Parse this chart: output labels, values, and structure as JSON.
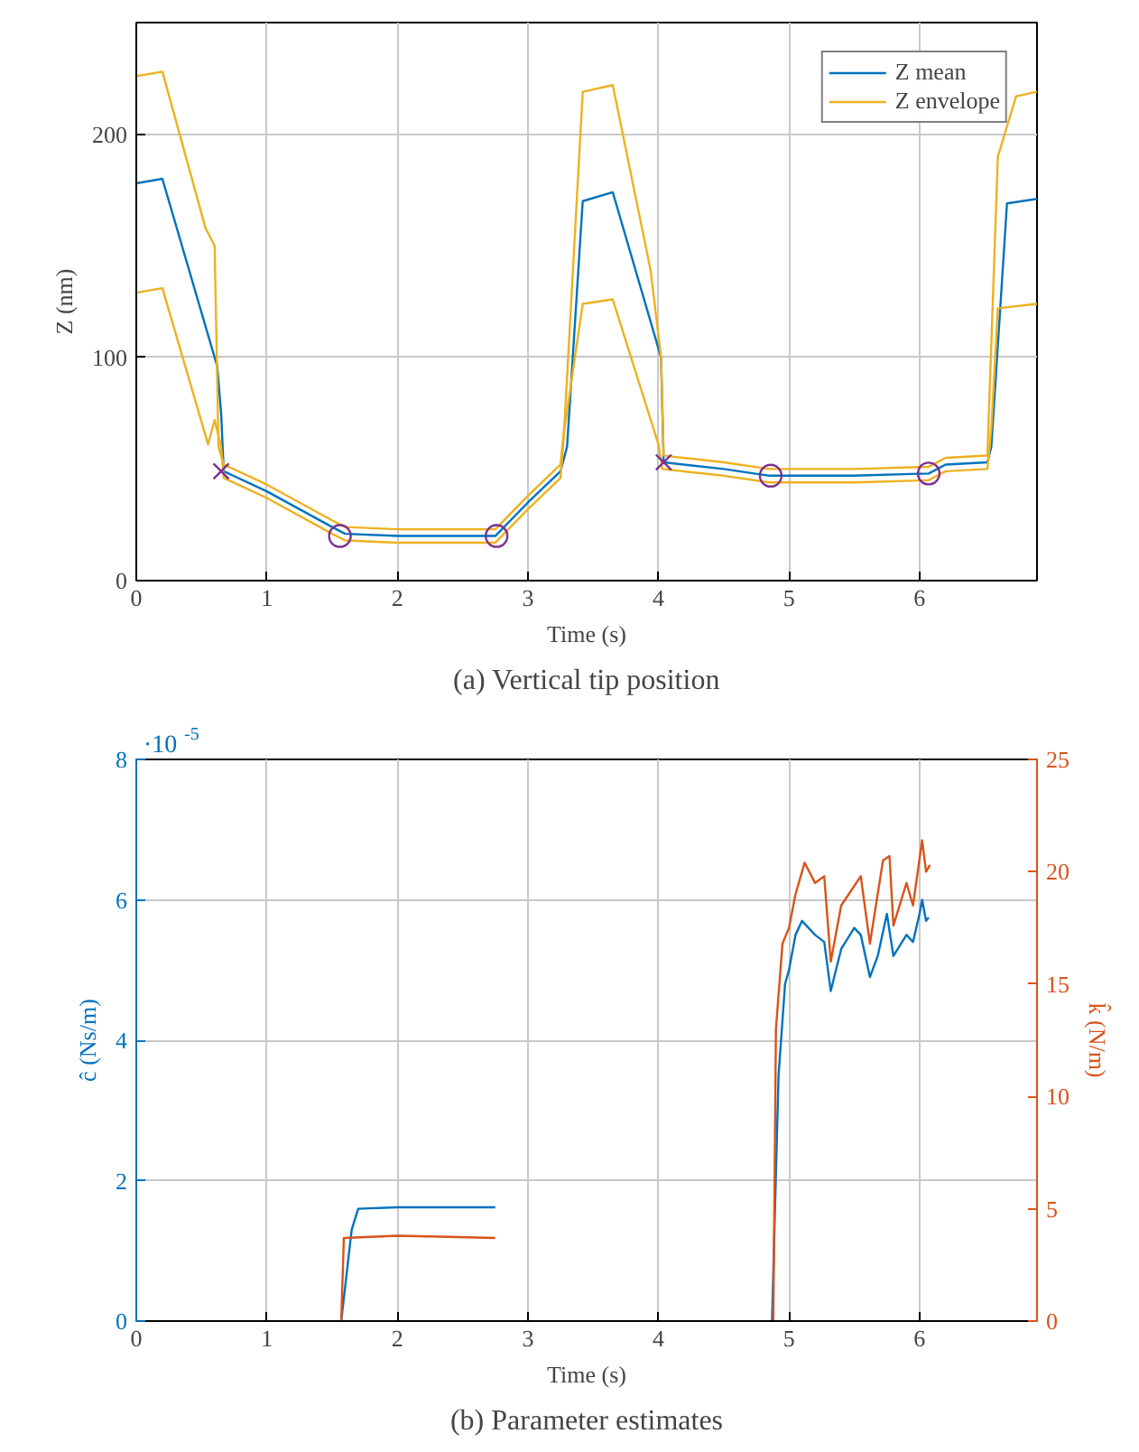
{
  "chart_data": [
    {
      "type": "line",
      "title": "(a) Vertical tip position",
      "xlabel": "Time (s)",
      "ylabel": "Z (nm)",
      "xlim": [
        0,
        6.9
      ],
      "ylim": [
        0,
        250
      ],
      "xticks": [
        0,
        1,
        2,
        3,
        4,
        5,
        6
      ],
      "yticks": [
        0,
        100,
        200
      ],
      "grid": true,
      "legend": "top right",
      "series": [
        {
          "name": "Z mean",
          "color": "#0072bd",
          "x": [
            0,
            0.2,
            0.62,
            0.65,
            0.67,
            1.0,
            1.5,
            1.6,
            2.0,
            2.75,
            3.0,
            3.25,
            3.3,
            3.42,
            3.65,
            4.02,
            4.04,
            4.5,
            4.85,
            5.0,
            5.5,
            6.07,
            6.2,
            6.52,
            6.55,
            6.67,
            6.9
          ],
          "values": [
            178,
            180,
            96,
            75,
            49,
            40,
            24,
            21,
            20,
            20,
            35,
            49,
            60,
            170,
            174,
            100,
            53,
            50,
            47,
            47,
            47,
            48,
            52,
            53,
            60,
            169,
            171
          ]
        },
        {
          "name": "Z envelope",
          "color": "#edb120",
          "x": [
            0,
            0.2,
            0.53,
            0.6,
            0.63,
            0.67,
            1.0,
            1.5,
            1.6,
            2.0,
            2.75,
            3.0,
            3.25,
            3.28,
            3.42,
            3.65,
            3.94,
            4.02,
            4.04,
            4.5,
            4.85,
            5.5,
            6.07,
            6.2,
            6.52,
            6.6,
            6.74,
            6.9
          ],
          "values": [
            226,
            228,
            158,
            150,
            60,
            52,
            43,
            27,
            24,
            23,
            23,
            38,
            52,
            70,
            219,
            222,
            139,
            100,
            56,
            53,
            50,
            50,
            51,
            55,
            56,
            190,
            217,
            219
          ]
        },
        {
          "color": "#edb120",
          "x": [
            0,
            0.2,
            0.55,
            0.6,
            0.65,
            0.67,
            1.0,
            1.5,
            1.6,
            2.0,
            2.75,
            3.0,
            3.25,
            3.28,
            3.42,
            3.65,
            4.0,
            4.03,
            4.5,
            4.85,
            5.5,
            6.07,
            6.2,
            6.52,
            6.55,
            6.6,
            6.9
          ],
          "values": [
            129,
            131,
            61,
            72,
            60,
            46,
            37,
            21,
            18,
            17,
            17,
            32,
            46,
            68,
            124,
            126,
            61,
            50,
            47,
            44,
            44,
            45,
            49,
            50,
            68,
            122,
            124
          ]
        },
        {
          "type": "scatter",
          "marker": "cross",
          "color": "#7e2f8e",
          "x": [
            0.65,
            4.04
          ],
          "values": [
            49,
            53
          ]
        },
        {
          "type": "scatter",
          "marker": "circle",
          "color": "#7e2f8e",
          "x": [
            1.56,
            2.76,
            4.86,
            6.07
          ],
          "values": [
            20,
            20,
            47,
            48
          ]
        }
      ]
    },
    {
      "type": "line",
      "title": "(b) Parameter estimates",
      "xlabel": "Time (s)",
      "ylabel": "ĉ (Ns/m)",
      "y2label": "k̂ (N/m)",
      "annotations": [
        "·10$^{-5}$"
      ],
      "xlim": [
        0,
        6.9
      ],
      "ylim": [
        0,
        8
      ],
      "y2lim": [
        0,
        25
      ],
      "xticks": [
        0,
        1,
        2,
        3,
        4,
        5,
        6
      ],
      "yticks": [
        0,
        2,
        4,
        6,
        8
      ],
      "y2ticks": [
        0,
        5,
        10,
        15,
        20,
        25
      ],
      "grid": true,
      "series": [
        {
          "color": "#0072bd",
          "x": [
            1.57,
            1.65,
            1.7,
            2.0,
            2.75,
            3.8,
            4.87,
            4.92,
            4.97,
            5.0,
            5.05,
            5.1,
            5.2,
            5.27,
            5.32,
            5.4,
            5.5,
            5.55,
            5.62,
            5.68,
            5.75,
            5.8,
            5.9,
            5.95,
            6.0,
            6.02,
            6.05,
            6.07
          ],
          "values": [
            0,
            1.3,
            1.6,
            1.62,
            1.62,
            null,
            0,
            3.5,
            4.8,
            5.0,
            5.5,
            5.7,
            5.5,
            5.4,
            4.7,
            5.3,
            5.6,
            5.5,
            4.9,
            5.2,
            5.8,
            5.2,
            5.5,
            5.4,
            5.8,
            6.0,
            5.7,
            5.75
          ]
        },
        {
          "color": "#d95319",
          "axis": "y2",
          "x": [
            1.57,
            1.59,
            2.0,
            2.75,
            3.8,
            4.88,
            4.9,
            4.95,
            5.0,
            5.05,
            5.12,
            5.2,
            5.27,
            5.32,
            5.4,
            5.55,
            5.62,
            5.72,
            5.77,
            5.8,
            5.9,
            5.95,
            6.02,
            6.05,
            6.08
          ],
          "values": [
            0,
            3.7,
            3.8,
            3.7,
            null,
            0,
            13,
            16.8,
            17.5,
            19,
            20.4,
            19.5,
            19.8,
            16,
            18.5,
            19.8,
            16.8,
            20.5,
            20.7,
            17.6,
            19.5,
            18.5,
            21.4,
            20,
            20.3
          ]
        }
      ]
    }
  ]
}
